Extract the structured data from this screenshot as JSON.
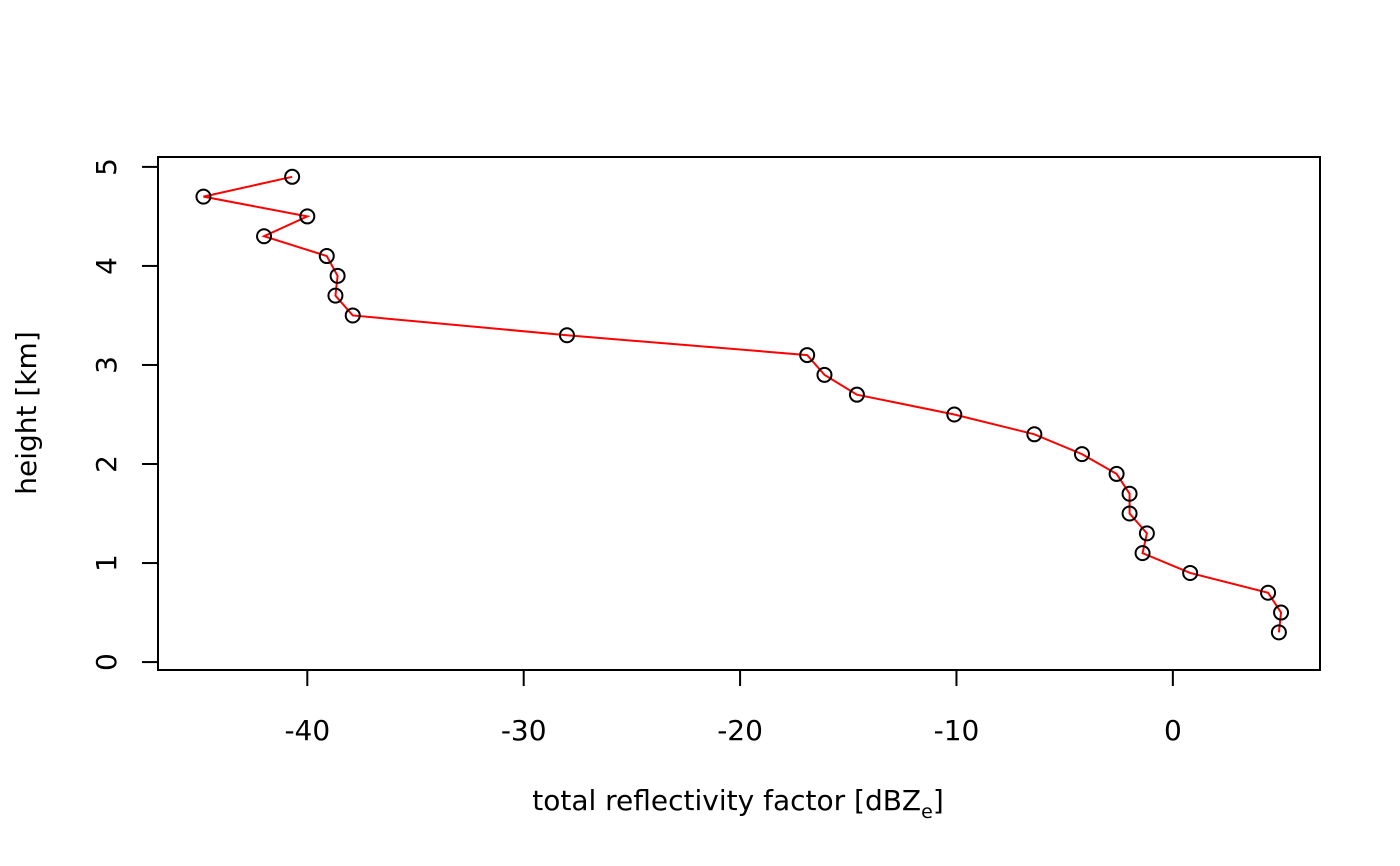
{
  "chart_data": {
    "type": "line",
    "title": "",
    "xlabel": "total reflectivity factor [dBZ",
    "xlabel_subscript": "e",
    "xlabel_close": "]",
    "ylabel": "height [km]",
    "xlim": [
      -46.9,
      6.8
    ],
    "ylim": [
      -0.08,
      5.1
    ],
    "x_ticks": [
      -40,
      -30,
      -20,
      -10,
      0
    ],
    "y_ticks": [
      0,
      1,
      2,
      3,
      4,
      5
    ],
    "x_tick_labels": [
      "-40",
      "-30",
      "-20",
      "-10",
      "0"
    ],
    "y_tick_labels": [
      "0",
      "1",
      "2",
      "3",
      "4",
      "5"
    ],
    "grid": false,
    "line_color": "#ff0000",
    "marker": "open-circle",
    "points": [
      {
        "x": -40.7,
        "y": 4.9
      },
      {
        "x": -44.8,
        "y": 4.7
      },
      {
        "x": -40.0,
        "y": 4.5
      },
      {
        "x": -42.0,
        "y": 4.3
      },
      {
        "x": -39.1,
        "y": 4.1
      },
      {
        "x": -38.6,
        "y": 3.9
      },
      {
        "x": -38.7,
        "y": 3.7
      },
      {
        "x": -37.9,
        "y": 3.5
      },
      {
        "x": -28.0,
        "y": 3.3
      },
      {
        "x": -16.9,
        "y": 3.1
      },
      {
        "x": -16.1,
        "y": 2.9
      },
      {
        "x": -14.6,
        "y": 2.7
      },
      {
        "x": -10.1,
        "y": 2.5
      },
      {
        "x": -6.4,
        "y": 2.3
      },
      {
        "x": -4.2,
        "y": 2.1
      },
      {
        "x": -2.6,
        "y": 1.9
      },
      {
        "x": -2.0,
        "y": 1.7
      },
      {
        "x": -2.0,
        "y": 1.5
      },
      {
        "x": -1.2,
        "y": 1.3
      },
      {
        "x": -1.4,
        "y": 1.1
      },
      {
        "x": 0.8,
        "y": 0.9
      },
      {
        "x": 4.4,
        "y": 0.7
      },
      {
        "x": 5.0,
        "y": 0.5
      },
      {
        "x": 4.9,
        "y": 0.3
      }
    ]
  }
}
